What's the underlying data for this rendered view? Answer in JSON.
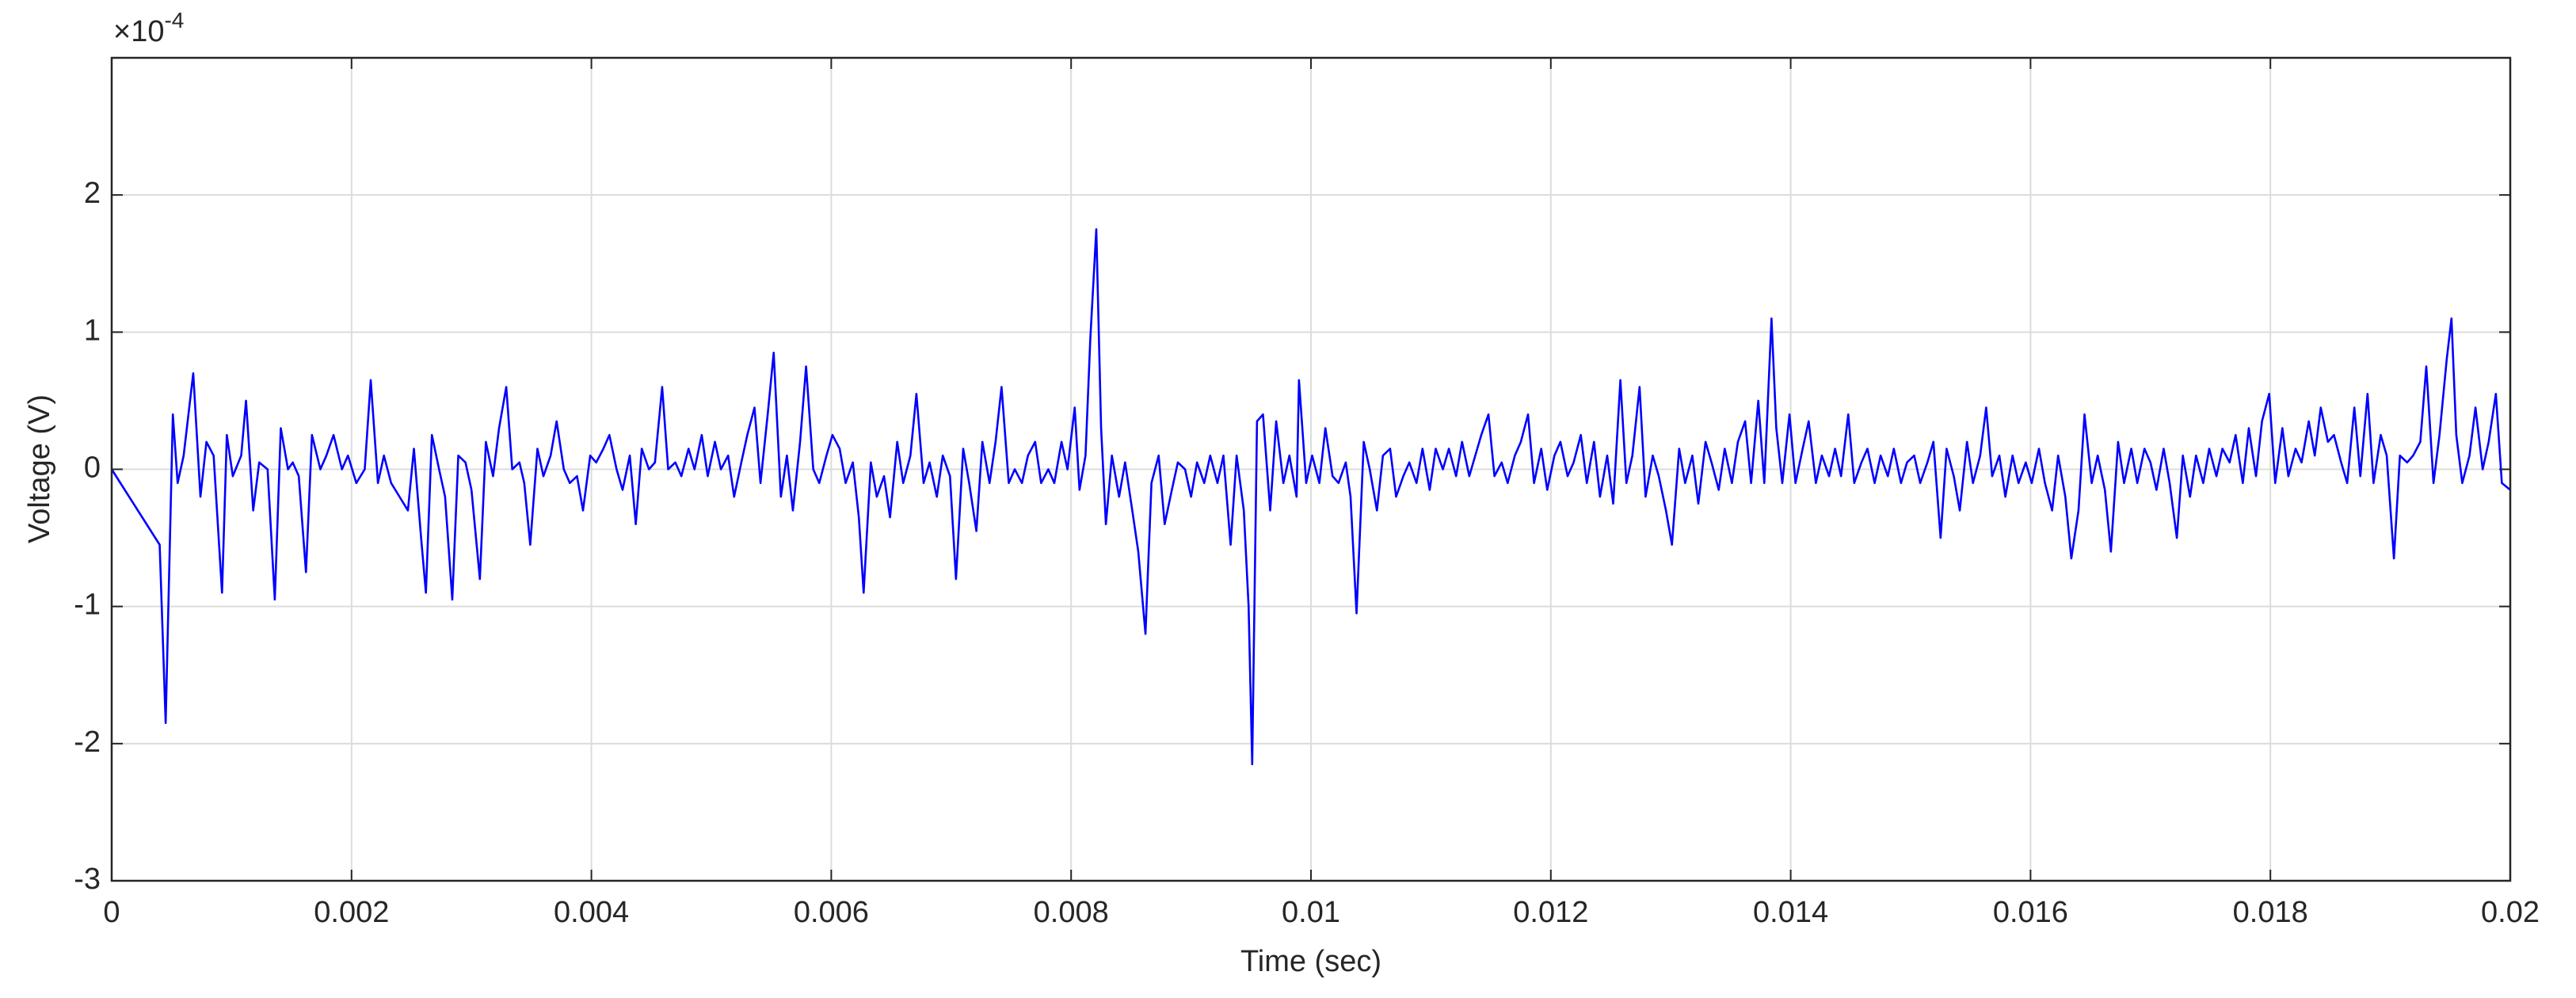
{
  "chart_data": {
    "type": "line",
    "x_label": "Time (sec)",
    "y_label": "Voltage (V)",
    "y_scale_label": {
      "base": "×10",
      "exponent": "-4"
    },
    "color": "#0000ff",
    "grid": true,
    "xlim": [
      0,
      0.02
    ],
    "xticks": [
      0,
      0.002,
      0.004,
      0.006,
      0.008,
      0.01,
      0.012,
      0.014,
      0.016,
      0.018,
      0.02
    ],
    "ylim": [
      -3,
      3
    ],
    "yticks": [
      -3,
      -2,
      -1,
      0,
      1,
      2
    ],
    "x": [
      0,
      0.0004,
      0.00045,
      0.00051,
      0.00055,
      0.0006,
      0.00068,
      0.00074,
      0.00079,
      0.00085,
      0.00092,
      0.00096,
      0.00101,
      0.00108,
      0.00112,
      0.00118,
      0.00123,
      0.0013,
      0.00136,
      0.00141,
      0.00147,
      0.00151,
      0.00156,
      0.00162,
      0.00167,
      0.00174,
      0.00179,
      0.00185,
      0.00192,
      0.00197,
      0.00204,
      0.00211,
      0.00216,
      0.00222,
      0.00227,
      0.00233,
      0.0024,
      0.00247,
      0.00252,
      0.00258,
      0.00262,
      0.00267,
      0.00273,
      0.00278,
      0.00284,
      0.00289,
      0.00295,
      0.003,
      0.00307,
      0.00312,
      0.00318,
      0.00323,
      0.00329,
      0.00334,
      0.0034,
      0.00344,
      0.00349,
      0.00355,
      0.0036,
      0.00366,
      0.00371,
      0.00377,
      0.00382,
      0.00388,
      0.00393,
      0.00399,
      0.00404,
      0.0041,
      0.00415,
      0.00421,
      0.00426,
      0.00432,
      0.00437,
      0.00442,
      0.00448,
      0.00453,
      0.00459,
      0.00464,
      0.0047,
      0.00475,
      0.00481,
      0.00486,
      0.00492,
      0.00497,
      0.00503,
      0.00508,
      0.00514,
      0.00519,
      0.00525,
      0.0053,
      0.00536,
      0.00541,
      0.00547,
      0.00552,
      0.00558,
      0.00563,
      0.00568,
      0.00574,
      0.00579,
      0.00585,
      0.0059,
      0.00596,
      0.00601,
      0.00607,
      0.00612,
      0.00618,
      0.00623,
      0.00627,
      0.00633,
      0.00638,
      0.00644,
      0.00649,
      0.00655,
      0.0066,
      0.00666,
      0.00671,
      0.00677,
      0.00682,
      0.00688,
      0.00693,
      0.00699,
      0.00704,
      0.0071,
      0.00715,
      0.00721,
      0.00726,
      0.00732,
      0.00737,
      0.00742,
      0.00748,
      0.00753,
      0.00759,
      0.00764,
      0.0077,
      0.00775,
      0.00781,
      0.00786,
      0.00792,
      0.00797,
      0.00803,
      0.00807,
      0.00812,
      0.00816,
      0.00821,
      0.00825,
      0.00829,
      0.00834,
      0.0084,
      0.00845,
      0.00851,
      0.00856,
      0.00862,
      0.00867,
      0.00873,
      0.00878,
      0.00884,
      0.00889,
      0.00895,
      0.009,
      0.00905,
      0.00911,
      0.00916,
      0.00922,
      0.00927,
      0.00933,
      0.00938,
      0.00944,
      0.00948,
      0.00951,
      0.00955,
      0.0096,
      0.00966,
      0.00971,
      0.00977,
      0.00982,
      0.00988,
      0.0099,
      0.00996,
      0.01001,
      0.01007,
      0.01012,
      0.01018,
      0.01023,
      0.01029,
      0.01033,
      0.01038,
      0.01044,
      0.01049,
      0.01055,
      0.0106,
      0.01066,
      0.01071,
      0.01077,
      0.01082,
      0.01088,
      0.01093,
      0.01099,
      0.01104,
      0.0111,
      0.01115,
      0.01121,
      0.01126,
      0.01132,
      0.01137,
      0.01142,
      0.01148,
      0.01153,
      0.01159,
      0.01164,
      0.0117,
      0.01175,
      0.01181,
      0.01186,
      0.01192,
      0.01197,
      0.01203,
      0.01208,
      0.01214,
      0.01219,
      0.01225,
      0.0123,
      0.01236,
      0.01241,
      0.01247,
      0.01252,
      0.01258,
      0.01263,
      0.01268,
      0.01274,
      0.01279,
      0.01285,
      0.0129,
      0.01296,
      0.01301,
      0.01307,
      0.01312,
      0.01318,
      0.01323,
      0.01329,
      0.01334,
      0.0134,
      0.01345,
      0.01351,
      0.01356,
      0.01362,
      0.01367,
      0.01373,
      0.01378,
      0.01384,
      0.01388,
      0.01393,
      0.01399,
      0.01404,
      0.0141,
      0.01415,
      0.01421,
      0.01426,
      0.01432,
      0.01437,
      0.01442,
      0.01448,
      0.01453,
      0.01459,
      0.01464,
      0.0147,
      0.01475,
      0.01481,
      0.01486,
      0.01492,
      0.01497,
      0.01503,
      0.01508,
      0.01514,
      0.01519,
      0.01525,
      0.0153,
      0.01536,
      0.01541,
      0.01547,
      0.01552,
      0.01558,
      0.01563,
      0.01568,
      0.01574,
      0.01579,
      0.01585,
      0.0159,
      0.01596,
      0.01601,
      0.01607,
      0.01612,
      0.01618,
      0.01623,
      0.01629,
      0.01634,
      0.0164,
      0.01645,
      0.01651,
      0.01656,
      0.01662,
      0.01667,
      0.01673,
      0.01678,
      0.01684,
      0.01689,
      0.01695,
      0.017,
      0.01705,
      0.01711,
      0.01716,
      0.01722,
      0.01727,
      0.01733,
      0.01738,
      0.01744,
      0.01749,
      0.01755,
      0.0176,
      0.01766,
      0.01771,
      0.01777,
      0.01782,
      0.01788,
      0.01793,
      0.01799,
      0.01804,
      0.0181,
      0.01815,
      0.01821,
      0.01826,
      0.01832,
      0.01837,
      0.01842,
      0.01848,
      0.01853,
      0.01859,
      0.01864,
      0.0187,
      0.01875,
      0.01881,
      0.01886,
      0.01892,
      0.01897,
      0.01903,
      0.01908,
      0.01914,
      0.01919,
      0.01925,
      0.0193,
      0.01936,
      0.01941,
      0.01947,
      0.01951,
      0.01955,
      0.0196,
      0.01966,
      0.01971,
      0.01977,
      0.01982,
      0.01988,
      0.01993,
      0.02
    ],
    "values": [
      0,
      -0.55,
      -1.85,
      0.4,
      -0.1,
      0.1,
      0.7,
      -0.2,
      0.2,
      0.1,
      -0.9,
      0.25,
      -0.05,
      0.1,
      0.5,
      -0.3,
      0.05,
      0,
      -0.95,
      0.3,
      0,
      0.05,
      -0.05,
      -0.75,
      0.25,
      0,
      0.1,
      0.25,
      0,
      0.1,
      -0.1,
      0,
      0.65,
      -0.1,
      0.1,
      -0.1,
      -0.2,
      -0.3,
      0.15,
      -0.5,
      -0.9,
      0.25,
      0,
      -0.2,
      -0.95,
      0.1,
      0.05,
      -0.15,
      -0.8,
      0.2,
      -0.05,
      0.3,
      0.6,
      0,
      0.05,
      -0.1,
      -0.55,
      0.15,
      -0.05,
      0.1,
      0.35,
      0,
      -0.1,
      -0.05,
      -0.3,
      0.1,
      0.05,
      0.15,
      0.25,
      0,
      -0.15,
      0.1,
      -0.4,
      0.15,
      0,
      0.05,
      0.6,
      0,
      0.05,
      -0.05,
      0.15,
      0,
      0.25,
      -0.05,
      0.2,
      0,
      0.1,
      -0.2,
      0.05,
      0.25,
      0.45,
      -0.1,
      0.4,
      0.85,
      -0.2,
      0.1,
      -0.3,
      0.2,
      0.75,
      0,
      -0.1,
      0.1,
      0.25,
      0.15,
      -0.1,
      0.05,
      -0.35,
      -0.9,
      0.05,
      -0.2,
      -0.05,
      -0.35,
      0.2,
      -0.1,
      0.1,
      0.55,
      -0.1,
      0.05,
      -0.2,
      0.1,
      -0.05,
      -0.8,
      0.15,
      -0.1,
      -0.45,
      0.2,
      -0.1,
      0.2,
      0.6,
      -0.1,
      0,
      -0.1,
      0.1,
      0.2,
      -0.1,
      0,
      -0.1,
      0.2,
      0,
      0.45,
      -0.15,
      0.1,
      0.95,
      1.75,
      0.3,
      -0.4,
      0.1,
      -0.2,
      0.05,
      -0.3,
      -0.6,
      -1.2,
      -0.1,
      0.1,
      -0.4,
      -0.15,
      0.05,
      0,
      -0.2,
      0.05,
      -0.1,
      0.1,
      -0.1,
      0.1,
      -0.55,
      0.1,
      -0.3,
      -1.0,
      -2.15,
      0.35,
      0.4,
      -0.3,
      0.35,
      -0.1,
      0.1,
      -0.2,
      0.65,
      -0.1,
      0.1,
      -0.1,
      0.3,
      -0.05,
      -0.1,
      0.05,
      -0.2,
      -1.05,
      0.2,
      0,
      -0.3,
      0.1,
      0.15,
      -0.2,
      -0.05,
      0.05,
      -0.1,
      0.15,
      -0.15,
      0.15,
      0,
      0.15,
      -0.05,
      0.2,
      -0.05,
      0.1,
      0.25,
      0.4,
      -0.05,
      0.05,
      -0.1,
      0.1,
      0.2,
      0.4,
      -0.1,
      0.15,
      -0.15,
      0.1,
      0.2,
      -0.05,
      0.05,
      0.25,
      -0.1,
      0.2,
      -0.2,
      0.1,
      -0.25,
      0.65,
      -0.1,
      0.1,
      0.6,
      -0.2,
      0.1,
      -0.05,
      -0.3,
      -0.55,
      0.15,
      -0.1,
      0.1,
      -0.25,
      0.2,
      0.05,
      -0.15,
      0.15,
      -0.1,
      0.2,
      0.35,
      -0.1,
      0.5,
      -0.1,
      1.1,
      0.3,
      -0.1,
      0.4,
      -0.1,
      0.15,
      0.35,
      -0.1,
      0.1,
      -0.05,
      0.15,
      -0.05,
      0.4,
      -0.1,
      0.05,
      0.15,
      -0.1,
      0.1,
      -0.05,
      0.15,
      -0.1,
      0.05,
      0.1,
      -0.1,
      0.05,
      0.2,
      -0.5,
      0.15,
      -0.05,
      -0.3,
      0.2,
      -0.1,
      0.1,
      0.45,
      -0.05,
      0.1,
      -0.2,
      0.1,
      -0.1,
      0.05,
      -0.1,
      0.15,
      -0.1,
      -0.3,
      0.1,
      -0.2,
      -0.65,
      -0.3,
      0.4,
      -0.1,
      0.1,
      -0.15,
      -0.6,
      0.2,
      -0.1,
      0.15,
      -0.1,
      0.15,
      0.05,
      -0.15,
      0.15,
      -0.1,
      -0.5,
      0.1,
      -0.2,
      0.1,
      -0.1,
      0.15,
      -0.05,
      0.15,
      0.05,
      0.25,
      -0.1,
      0.3,
      -0.05,
      0.35,
      0.55,
      -0.1,
      0.3,
      -0.05,
      0.15,
      0.05,
      0.35,
      0.1,
      0.45,
      0.2,
      0.25,
      0.05,
      -0.1,
      0.45,
      -0.05,
      0.55,
      -0.1,
      0.25,
      0.1,
      -0.65,
      0.1,
      0.05,
      0.1,
      0.2,
      0.75,
      -0.1,
      0.25,
      0.8,
      1.1,
      0.25,
      -0.1,
      0.1,
      0.45,
      0,
      0.2,
      0.55,
      -0.1,
      -0.15
    ]
  }
}
